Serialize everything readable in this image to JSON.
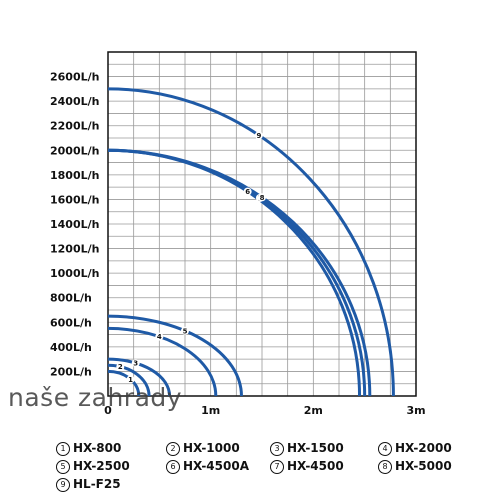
{
  "chart_data": {
    "type": "line",
    "title": "",
    "xlabel": "",
    "ylabel": "",
    "xlim": [
      0,
      3
    ],
    "ylim": [
      0,
      2800
    ],
    "x_ticks": [
      {
        "value": 0,
        "label": "0"
      },
      {
        "value": 1,
        "label": "1m"
      },
      {
        "value": 2,
        "label": "2m"
      },
      {
        "value": 3,
        "label": "3m"
      }
    ],
    "y_ticks": [
      {
        "value": 200,
        "label": "200L/h"
      },
      {
        "value": 400,
        "label": "400L/h"
      },
      {
        "value": 600,
        "label": "600L/h"
      },
      {
        "value": 800,
        "label": "800L/h"
      },
      {
        "value": 1000,
        "label": "1000L/h"
      },
      {
        "value": 1200,
        "label": "1200L/h"
      },
      {
        "value": 1400,
        "label": "1400L/h"
      },
      {
        "value": 1600,
        "label": "1600L/h"
      },
      {
        "value": 1800,
        "label": "1800L/h"
      },
      {
        "value": 2000,
        "label": "2000L/h"
      },
      {
        "value": 2200,
        "label": "2200L/h"
      },
      {
        "value": 2400,
        "label": "2400L/h"
      },
      {
        "value": 2600,
        "label": "2600L/h"
      }
    ],
    "grid": true,
    "legend_position": "bottom",
    "series": [
      {
        "name": "HX-800",
        "marker": "1",
        "max_flow": 200,
        "max_head": 0.3,
        "label_at": 0.22
      },
      {
        "name": "HX-1000",
        "marker": "2",
        "max_flow": 250,
        "max_head": 0.4,
        "label_at": 0.12
      },
      {
        "name": "HX-1500",
        "marker": "3",
        "max_flow": 300,
        "max_head": 0.6,
        "label_at": 0.27
      },
      {
        "name": "HX-2000",
        "marker": "4",
        "max_flow": 550,
        "max_head": 1.05,
        "label_at": 0.5
      },
      {
        "name": "HX-2500",
        "marker": "5",
        "max_flow": 650,
        "max_head": 1.3,
        "label_at": 0.75
      },
      {
        "name": "HX-4500A",
        "marker": "6",
        "max_flow": 2000,
        "max_head": 2.45,
        "label_at": 1.36
      },
      {
        "name": "HX-4500",
        "marker": "7",
        "max_flow": 2000,
        "max_head": 2.5,
        "label_at": 1.48
      },
      {
        "name": "HX-5000",
        "marker": "8",
        "max_flow": 2000,
        "max_head": 2.55,
        "label_at": 1.5
      },
      {
        "name": "HL-F25",
        "marker": "9",
        "max_flow": 2500,
        "max_head": 2.78,
        "label_at": 1.47
      }
    ]
  },
  "watermark": "naše zahrady",
  "legend": [
    {
      "marker": "1",
      "name": "HX-800"
    },
    {
      "marker": "2",
      "name": "HX-1000"
    },
    {
      "marker": "3",
      "name": "HX-1500"
    },
    {
      "marker": "4",
      "name": "HX-2000"
    },
    {
      "marker": "5",
      "name": "HX-2500"
    },
    {
      "marker": "6",
      "name": "HX-4500A"
    },
    {
      "marker": "7",
      "name": "HX-4500"
    },
    {
      "marker": "8",
      "name": "HX-5000"
    },
    {
      "marker": "9",
      "name": "HL-F25"
    }
  ],
  "colors": {
    "curve": "#1f5aa6",
    "grid": "#9a9a9a",
    "axis": "#111111"
  }
}
